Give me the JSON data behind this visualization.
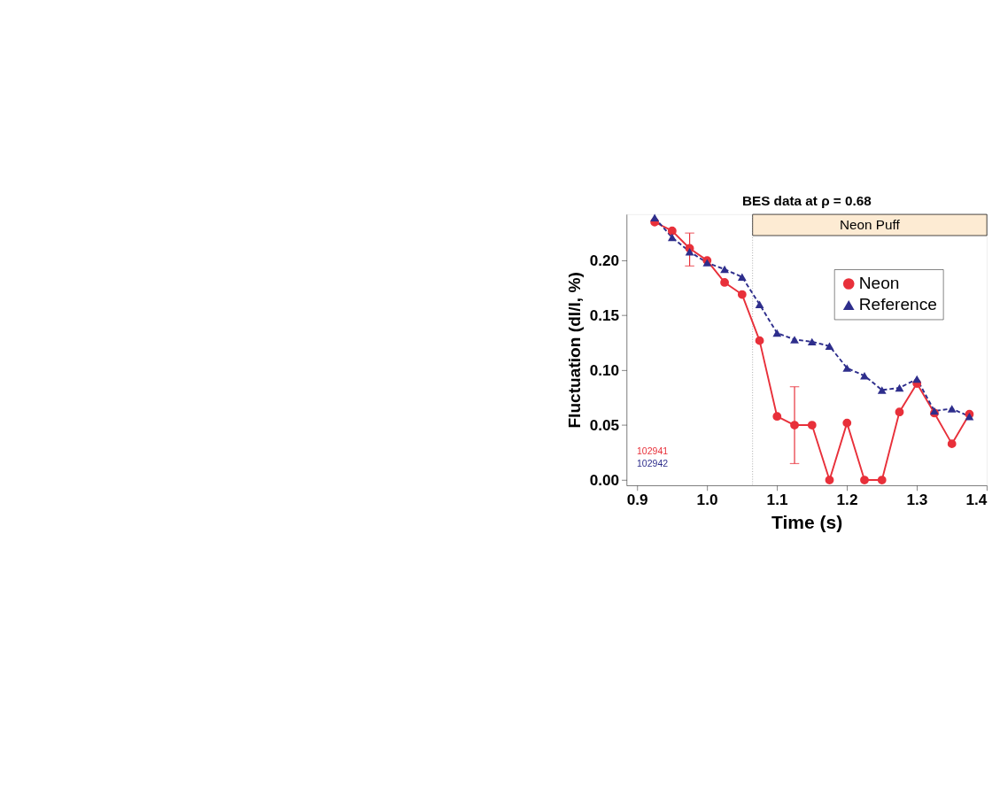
{
  "chart_data": {
    "type": "line",
    "title": "BES data at ρ = 0.68",
    "xlabel": "Time (s)",
    "ylabel": "Fluctuation (dI/I, %)",
    "x": [
      0.925,
      0.95,
      0.975,
      1.0,
      1.025,
      1.05,
      1.075,
      1.1,
      1.125,
      1.15,
      1.175,
      1.2,
      1.225,
      1.25,
      1.275,
      1.3,
      1.325,
      1.35,
      1.375
    ],
    "series": [
      {
        "name": "Neon",
        "color": "#e8303a",
        "marker": "circle",
        "line_style": "solid",
        "values": [
          0.235,
          0.227,
          0.211,
          0.2,
          0.18,
          0.169,
          0.127,
          0.058,
          0.05,
          0.05,
          0.0,
          0.052,
          0.0,
          0.0,
          0.062,
          0.088,
          0.061,
          0.033,
          0.06
        ],
        "errors": [
          null,
          null,
          [
            0.195,
            0.225
          ],
          null,
          null,
          null,
          null,
          null,
          [
            0.015,
            0.085
          ],
          null,
          null,
          null,
          null,
          null,
          null,
          null,
          null,
          null,
          null
        ]
      },
      {
        "name": "Reference",
        "color": "#2e2e8c",
        "marker": "triangle",
        "line_style": "dashed",
        "values": [
          0.239,
          0.221,
          0.208,
          0.198,
          0.192,
          0.185,
          0.16,
          0.134,
          0.128,
          0.126,
          0.122,
          0.102,
          0.095,
          0.082,
          0.084,
          0.092,
          0.063,
          0.065,
          0.058
        ]
      }
    ],
    "xlim": [
      0.885,
      1.4
    ],
    "ylim": [
      -0.005,
      0.242
    ],
    "xticks": [
      0.9,
      {
        "value": 1.0,
        "label": "1.0"
      },
      1.1,
      1.2,
      1.3,
      1.4
    ],
    "yticks": [
      {
        "value": 0,
        "label": "0.00"
      },
      0.05,
      {
        "value": 0.1,
        "label": "0.10"
      },
      0.15,
      {
        "value": 0.2,
        "label": "0.20"
      }
    ],
    "ref_lines": [
      {
        "axis": "x",
        "value": 1.065,
        "color": "#888888",
        "line_style": "dotted"
      }
    ],
    "bands": [
      {
        "axis": "x",
        "from": 1.065,
        "to": 1.4,
        "label": "Neon Puff",
        "color": "#fdebd3"
      }
    ],
    "annotations": [
      "102941",
      "102942"
    ],
    "legend": "top right",
    "grid": false
  }
}
